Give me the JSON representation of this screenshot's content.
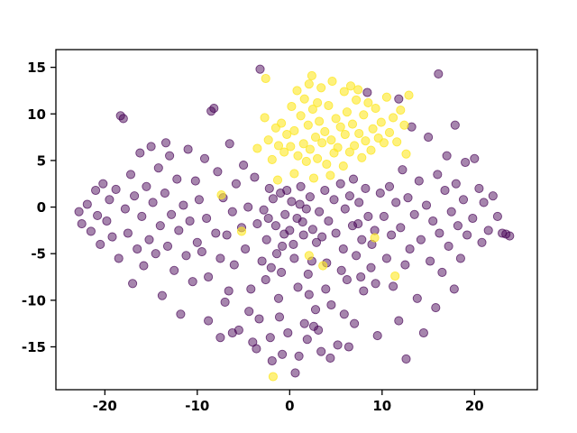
{
  "figure": {
    "background": "#ffffff"
  },
  "chart_data": {
    "type": "scatter",
    "title": "",
    "xlabel": "",
    "ylabel": "",
    "xlim": [
      -25.3,
      26.8
    ],
    "ylim": [
      -19.6,
      16.9
    ],
    "x_ticks": [
      -20,
      -10,
      0,
      10,
      20
    ],
    "y_ticks": [
      -15,
      -10,
      -5,
      0,
      5,
      10,
      15
    ],
    "grid": false,
    "legend": null,
    "marker_radius": 4.6,
    "series": [
      {
        "name": "class-0-purple",
        "color": "#440154",
        "opacity": 0.48,
        "points": [
          [
            -22.8,
            -0.5
          ],
          [
            -22.5,
            -1.8
          ],
          [
            -21.9,
            0.3
          ],
          [
            -21.5,
            -2.6
          ],
          [
            -21.0,
            1.8
          ],
          [
            -20.8,
            -0.9
          ],
          [
            -20.5,
            -4.0
          ],
          [
            -20.2,
            2.5
          ],
          [
            -19.8,
            -1.5
          ],
          [
            -19.5,
            0.8
          ],
          [
            -19.2,
            -3.2
          ],
          [
            -18.8,
            1.9
          ],
          [
            -18.5,
            -5.5
          ],
          [
            -18.3,
            9.8
          ],
          [
            -18.0,
            9.5
          ],
          [
            -17.8,
            -0.2
          ],
          [
            -17.5,
            -2.8
          ],
          [
            -17.2,
            3.5
          ],
          [
            -17.0,
            -8.2
          ],
          [
            -16.8,
            1.2
          ],
          [
            -16.5,
            -4.5
          ],
          [
            -16.2,
            5.8
          ],
          [
            -16.0,
            -1.0
          ],
          [
            -15.8,
            -6.3
          ],
          [
            -15.5,
            2.2
          ],
          [
            -15.2,
            -3.5
          ],
          [
            -15.0,
            6.5
          ],
          [
            -14.8,
            0.5
          ],
          [
            -14.5,
            -5.0
          ],
          [
            -14.2,
            4.2
          ],
          [
            -14.0,
            -2.0
          ],
          [
            -13.8,
            -9.5
          ],
          [
            -13.5,
            1.5
          ],
          [
            -13.4,
            6.9
          ],
          [
            -13.2,
            -4.2
          ],
          [
            -13.0,
            5.5
          ],
          [
            -12.8,
            -0.8
          ],
          [
            -12.5,
            -6.8
          ],
          [
            -12.2,
            3.0
          ],
          [
            -12.0,
            -2.5
          ],
          [
            -11.8,
            -11.5
          ],
          [
            -11.5,
            0.2
          ],
          [
            -11.2,
            -5.2
          ],
          [
            -11.0,
            6.2
          ],
          [
            -10.8,
            -1.5
          ],
          [
            -10.5,
            -8.0
          ],
          [
            -10.2,
            2.8
          ],
          [
            -10.0,
            -3.8
          ],
          [
            -9.8,
            0.8
          ],
          [
            -9.5,
            -4.8
          ],
          [
            -9.2,
            5.2
          ],
          [
            -9.0,
            -1.2
          ],
          [
            -8.8,
            -7.5
          ],
          [
            -8.5,
            10.3
          ],
          [
            -8.2,
            10.6
          ],
          [
            -8.0,
            -2.8
          ],
          [
            -7.8,
            3.8
          ],
          [
            -7.5,
            -5.5
          ],
          [
            -7.2,
            1.0
          ],
          [
            -7.0,
            -10.2
          ],
          [
            -6.8,
            -3.0
          ],
          [
            -6.5,
            6.8
          ],
          [
            -6.2,
            -0.5
          ],
          [
            -6.0,
            -6.2
          ],
          [
            -5.8,
            2.5
          ],
          [
            -5.5,
            -13.2
          ],
          [
            -5.2,
            -2.2
          ],
          [
            -5.0,
            4.5
          ],
          [
            -4.8,
            -4.5
          ],
          [
            -4.5,
            0.0
          ],
          [
            -4.2,
            -8.8
          ],
          [
            -4.0,
            -14.5
          ],
          [
            -3.8,
            3.2
          ],
          [
            -3.5,
            -1.8
          ],
          [
            -3.2,
            14.8
          ],
          [
            -3.0,
            -5.8
          ],
          [
            -3.3,
            -12.0
          ],
          [
            -3.6,
            -15.2
          ],
          [
            -2.8,
            -0.3
          ],
          [
            -2.5,
            -3.5
          ],
          [
            -2.2,
            2.0
          ],
          [
            -2.0,
            -6.5
          ],
          [
            -1.8,
            0.9
          ],
          [
            -1.5,
            -2.0
          ],
          [
            -1.2,
            -9.8
          ],
          [
            -1.0,
            1.5
          ],
          [
            -0.8,
            -4.2
          ],
          [
            -0.5,
            -0.8
          ],
          [
            -0.2,
            -13.5
          ],
          [
            0.0,
            -2.5
          ],
          [
            0.2,
            0.6
          ],
          [
            0.5,
            -5.5
          ],
          [
            0.8,
            -1.2
          ],
          [
            1.0,
            -16.0
          ],
          [
            1.2,
            2.2
          ],
          [
            1.5,
            -3.0
          ],
          [
            1.8,
            -0.2
          ],
          [
            2.0,
            -7.2
          ],
          [
            2.2,
            1.1
          ],
          [
            2.5,
            -2.4
          ],
          [
            2.8,
            -11.0
          ],
          [
            -2.6,
            -7.8
          ],
          [
            -1.4,
            -5.0
          ],
          [
            -0.6,
            -2.9
          ],
          [
            0.4,
            -4.0
          ],
          [
            1.4,
            -1.6
          ],
          [
            2.4,
            -5.8
          ],
          [
            0.9,
            -8.6
          ],
          [
            -0.9,
            -7.0
          ],
          [
            1.9,
            -14.2
          ],
          [
            -1.9,
            -16.5
          ],
          [
            0.6,
            -17.8
          ],
          [
            2.9,
            -3.8
          ],
          [
            -2.3,
            -1.2
          ],
          [
            -0.3,
            1.8
          ],
          [
            1.1,
            0.3
          ],
          [
            2.1,
            -9.4
          ],
          [
            -1.1,
            -11.8
          ],
          [
            3.2,
            -0.5
          ],
          [
            3.5,
            -3.2
          ],
          [
            3.8,
            1.8
          ],
          [
            4.0,
            -6.0
          ],
          [
            4.2,
            -1.5
          ],
          [
            4.5,
            -10.5
          ],
          [
            4.8,
            0.8
          ],
          [
            5.0,
            -2.8
          ],
          [
            5.2,
            -14.8
          ],
          [
            5.5,
            2.5
          ],
          [
            5.8,
            -4.5
          ],
          [
            6.0,
            -0.2
          ],
          [
            6.2,
            -7.8
          ],
          [
            6.5,
            1.2
          ],
          [
            6.8,
            -2.0
          ],
          [
            7.0,
            -12.5
          ],
          [
            7.2,
            -5.2
          ],
          [
            7.5,
            0.5
          ],
          [
            7.8,
            -3.5
          ],
          [
            8.0,
            -9.0
          ],
          [
            8.2,
            2.0
          ],
          [
            8.5,
            -1.0
          ],
          [
            8.8,
            -6.5
          ],
          [
            9.2,
            -2.5
          ],
          [
            9.5,
            -13.8
          ],
          [
            9.8,
            1.5
          ],
          [
            9.3,
            -8.2
          ],
          [
            4.4,
            -16.2
          ],
          [
            3.4,
            -15.5
          ],
          [
            6.4,
            -15.0
          ],
          [
            8.9,
            -4.0
          ],
          [
            3.9,
            -8.8
          ],
          [
            5.6,
            -6.8
          ],
          [
            7.4,
            -1.8
          ],
          [
            6.9,
            3.0
          ],
          [
            8.4,
            12.3
          ],
          [
            10.2,
            -1.0
          ],
          [
            10.5,
            -5.5
          ],
          [
            10.8,
            2.2
          ],
          [
            11.0,
            -3.0
          ],
          [
            11.2,
            -8.5
          ],
          [
            11.5,
            0.5
          ],
          [
            11.8,
            -12.2
          ],
          [
            11.8,
            11.6
          ],
          [
            12.0,
            -2.2
          ],
          [
            12.2,
            4.0
          ],
          [
            12.5,
            -6.2
          ],
          [
            12.6,
            -16.3
          ],
          [
            12.8,
            1.0
          ],
          [
            13.0,
            -4.5
          ],
          [
            13.2,
            8.6
          ],
          [
            13.5,
            -0.8
          ],
          [
            13.8,
            -9.8
          ],
          [
            14.0,
            2.8
          ],
          [
            14.2,
            -3.5
          ],
          [
            14.5,
            -13.5
          ],
          [
            14.8,
            0.2
          ],
          [
            15.0,
            7.5
          ],
          [
            15.2,
            -5.8
          ],
          [
            15.5,
            -1.5
          ],
          [
            15.8,
            -10.8
          ],
          [
            16.0,
            3.5
          ],
          [
            16.1,
            14.3
          ],
          [
            16.2,
            -2.8
          ],
          [
            16.5,
            -7.0
          ],
          [
            16.8,
            1.8
          ],
          [
            17.0,
            5.5
          ],
          [
            17.2,
            -4.2
          ],
          [
            17.5,
            -0.5
          ],
          [
            17.8,
            -8.8
          ],
          [
            17.9,
            8.8
          ],
          [
            18.0,
            2.5
          ],
          [
            18.2,
            -2.0
          ],
          [
            18.5,
            -5.5
          ],
          [
            18.8,
            0.8
          ],
          [
            19.0,
            4.8
          ],
          [
            19.2,
            -3.0
          ],
          [
            19.8,
            -1.2
          ],
          [
            20.0,
            5.2
          ],
          [
            20.5,
            2.0
          ],
          [
            20.8,
            -3.8
          ],
          [
            21.0,
            0.5
          ],
          [
            21.5,
            -2.5
          ],
          [
            22.0,
            1.2
          ],
          [
            22.5,
            -1.0
          ],
          [
            23.0,
            -2.8
          ],
          [
            23.4,
            -2.9
          ],
          [
            23.8,
            -3.1
          ],
          [
            -7.5,
            -14.0
          ],
          [
            -6.2,
            -13.5
          ],
          [
            -8.8,
            -12.2
          ],
          [
            -0.8,
            -15.8
          ],
          [
            3.1,
            -13.2
          ],
          [
            -2.1,
            -14.0
          ],
          [
            1.6,
            -12.5
          ],
          [
            -4.4,
            -11.2
          ],
          [
            5.9,
            -11.5
          ],
          [
            -6.6,
            -9.0
          ],
          [
            7.7,
            -7.5
          ],
          [
            2.6,
            -12.8
          ]
        ]
      },
      {
        "name": "class-1-yellow",
        "color": "#fde725",
        "opacity": 0.6,
        "points": [
          [
            0.1,
            6.5
          ],
          [
            0.5,
            8.2
          ],
          [
            0.9,
            5.5
          ],
          [
            1.2,
            9.8
          ],
          [
            1.5,
            6.8
          ],
          [
            1.8,
            4.9
          ],
          [
            2.0,
            8.8
          ],
          [
            2.2,
            6.2
          ],
          [
            2.5,
            10.5
          ],
          [
            2.8,
            7.5
          ],
          [
            3.0,
            5.2
          ],
          [
            3.2,
            9.2
          ],
          [
            3.5,
            6.9
          ],
          [
            3.8,
            8.1
          ],
          [
            4.0,
            4.6
          ],
          [
            4.2,
            10.9
          ],
          [
            4.5,
            7.2
          ],
          [
            4.8,
            5.8
          ],
          [
            5.0,
            9.5
          ],
          [
            5.2,
            6.4
          ],
          [
            5.5,
            8.6
          ],
          [
            5.8,
            4.4
          ],
          [
            6.0,
            7.8
          ],
          [
            6.2,
            10.2
          ],
          [
            6.5,
            5.9
          ],
          [
            6.8,
            8.9
          ],
          [
            7.0,
            6.6
          ],
          [
            7.2,
            11.5
          ],
          [
            7.5,
            7.9
          ],
          [
            7.8,
            5.3
          ],
          [
            8.0,
            9.9
          ],
          [
            8.2,
            7.1
          ],
          [
            8.5,
            11.2
          ],
          [
            8.8,
            6.1
          ],
          [
            9.0,
            8.4
          ],
          [
            9.3,
            10.6
          ],
          [
            9.6,
            7.4
          ],
          [
            9.9,
            9.1
          ],
          [
            10.2,
            6.9
          ],
          [
            10.5,
            11.8
          ],
          [
            10.8,
            8.0
          ],
          [
            11.2,
            9.6
          ],
          [
            11.6,
            7.0
          ],
          [
            12.0,
            10.4
          ],
          [
            12.4,
            8.8
          ],
          [
            12.9,
            12.0
          ],
          [
            -0.3,
            7.8
          ],
          [
            -0.6,
            5.9
          ],
          [
            -0.9,
            9.0
          ],
          [
            -1.2,
            6.6
          ],
          [
            -1.5,
            8.5
          ],
          [
            -1.9,
            5.1
          ],
          [
            -2.3,
            7.2
          ],
          [
            -2.7,
            9.6
          ],
          [
            -3.5,
            6.3
          ],
          [
            0.8,
            12.5
          ],
          [
            2.1,
            13.2
          ],
          [
            3.4,
            12.8
          ],
          [
            4.6,
            13.5
          ],
          [
            5.9,
            12.4
          ],
          [
            1.6,
            11.6
          ],
          [
            3.0,
            11.2
          ],
          [
            6.6,
            13.0
          ],
          [
            7.4,
            12.6
          ],
          [
            0.2,
            10.8
          ],
          [
            2.4,
            14.1
          ],
          [
            -2.6,
            13.8
          ],
          [
            0.5,
            3.6
          ],
          [
            2.6,
            3.1
          ],
          [
            4.4,
            3.4
          ],
          [
            -1.3,
            2.9
          ],
          [
            -5.2,
            -2.6
          ],
          [
            3.6,
            -6.3
          ],
          [
            2.1,
            -5.2
          ],
          [
            11.4,
            -7.4
          ],
          [
            -1.8,
            -18.2
          ],
          [
            9.2,
            -3.3
          ],
          [
            -7.4,
            1.3
          ],
          [
            12.6,
            5.7
          ]
        ]
      }
    ]
  }
}
